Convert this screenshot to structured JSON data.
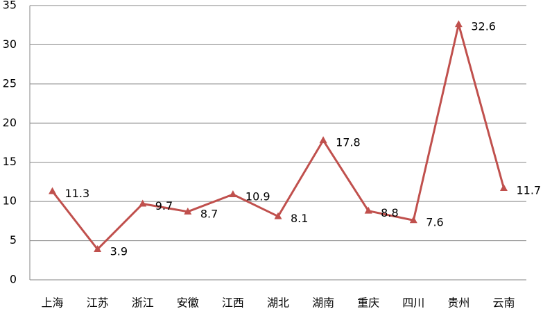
{
  "chart_data": {
    "type": "line",
    "categories": [
      "上海",
      "江苏",
      "浙江",
      "安徽",
      "江西",
      "湖北",
      "湖南",
      "重庆",
      "四川",
      "贵州",
      "云南"
    ],
    "values": [
      11.3,
      3.9,
      9.7,
      8.7,
      10.9,
      8.1,
      17.8,
      8.8,
      7.6,
      32.6,
      11.7
    ],
    "color": "#c0504d",
    "ylim": [
      0,
      35
    ],
    "yticks": [
      0,
      5,
      10,
      15,
      20,
      25,
      30,
      35
    ],
    "grid": true
  }
}
